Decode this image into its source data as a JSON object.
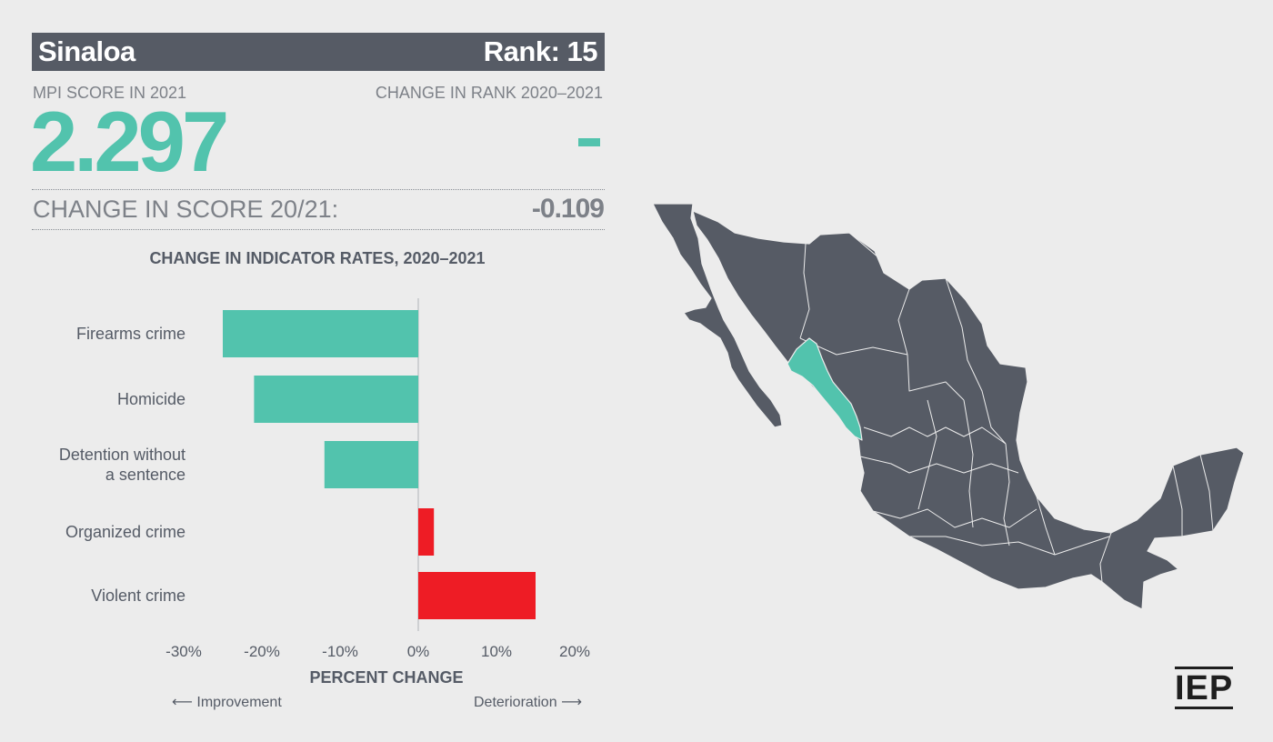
{
  "header": {
    "state": "Sinaloa",
    "rank": "Rank: 15"
  },
  "score_block": {
    "mpi_label": "MPI SCORE IN 2021",
    "mpi_value": "2.297",
    "rank_change_label": "CHANGE IN RANK 2020–2021",
    "change_label": "CHANGE IN SCORE 20/21:",
    "change_value": "-0.109"
  },
  "colors": {
    "improvement": "#52c3ad",
    "deterioration": "#ee1c25",
    "map_land": "#565b65",
    "highlight": "#52c3ad"
  },
  "chart_data": {
    "type": "bar",
    "orientation": "horizontal",
    "title": "CHANGE IN INDICATOR RATES, 2020–2021",
    "categories": [
      "Firearms crime",
      "Homicide",
      "Detention without a sentence",
      "Organized crime",
      "Violent crime"
    ],
    "category_lines": [
      [
        "Firearms crime"
      ],
      [
        "Homicide"
      ],
      [
        "Detention without",
        "a sentence"
      ],
      [
        "Organized crime"
      ],
      [
        "Violent crime"
      ]
    ],
    "values": [
      -25,
      -21,
      -12,
      2,
      15
    ],
    "xlim": [
      -30,
      20
    ],
    "ticks": [
      -30,
      -20,
      -10,
      0,
      10,
      20
    ],
    "tick_labels": [
      "-30%",
      "-20%",
      "-10%",
      "0%",
      "10%",
      "20%"
    ],
    "xlabel": "PERCENT CHANGE",
    "direction_left": "Improvement",
    "direction_right": "Deterioration"
  },
  "map": {
    "icon": "mexico-map-icon",
    "highlighted_state": "Sinaloa"
  },
  "logo": {
    "text": "IEP"
  }
}
